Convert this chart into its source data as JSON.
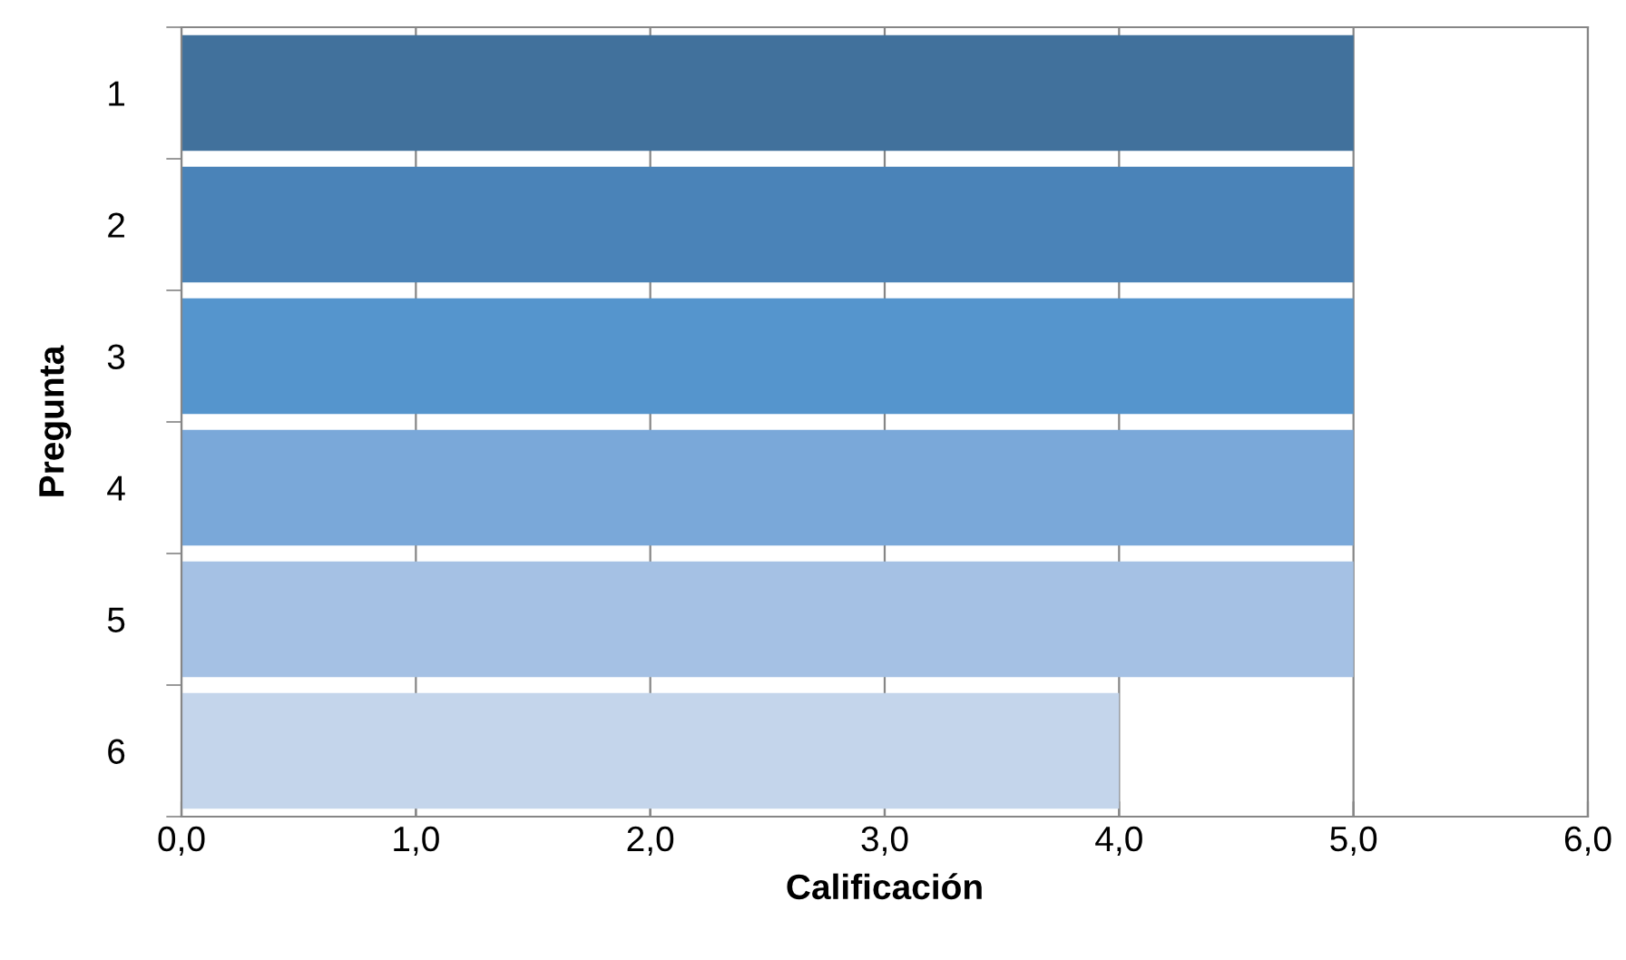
{
  "chart_data": {
    "type": "bar",
    "orientation": "horizontal",
    "xlabel": "Calificación",
    "ylabel": "Pregunta",
    "categories": [
      "1",
      "2",
      "3",
      "4",
      "5",
      "6"
    ],
    "values": [
      5,
      5,
      5,
      5,
      5,
      4
    ],
    "colors": [
      "#41719c",
      "#4a83b8",
      "#5595cd",
      "#7aa8d9",
      "#a5c1e4",
      "#c4d5eb"
    ],
    "xlim": [
      0,
      6
    ],
    "xticks": [
      {
        "value": 0,
        "label": "0,0"
      },
      {
        "value": 1,
        "label": "1,0"
      },
      {
        "value": 2,
        "label": "2,0"
      },
      {
        "value": 3,
        "label": "3,0"
      },
      {
        "value": 4,
        "label": "4,0"
      },
      {
        "value": 5,
        "label": "5,0"
      },
      {
        "value": 6,
        "label": "6,0"
      }
    ],
    "grid": "x"
  }
}
